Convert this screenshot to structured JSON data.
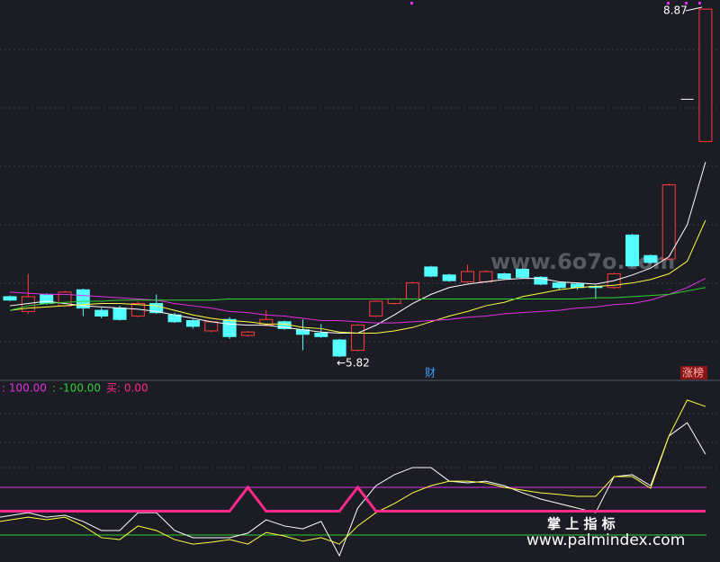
{
  "chart_data": [
    {
      "type": "candlestick",
      "up_color": "#ff3b3b",
      "down_color": "#54ffff",
      "ylim": [
        5.64,
        8.95
      ],
      "ohlc": [
        [
          6.35,
          6.36,
          6.31,
          6.32
        ],
        [
          6.22,
          6.55,
          6.2,
          6.35
        ],
        [
          6.37,
          6.38,
          6.28,
          6.29
        ],
        [
          6.27,
          6.4,
          6.26,
          6.39
        ],
        [
          6.41,
          6.42,
          6.18,
          6.25
        ],
        [
          6.23,
          6.25,
          6.16,
          6.18
        ],
        [
          6.25,
          6.27,
          6.14,
          6.15
        ],
        [
          6.18,
          6.31,
          6.17,
          6.29
        ],
        [
          6.29,
          6.37,
          6.2,
          6.21
        ],
        [
          6.19,
          6.21,
          6.12,
          6.13
        ],
        [
          6.14,
          6.15,
          6.07,
          6.09
        ],
        [
          6.05,
          6.14,
          6.04,
          6.13
        ],
        [
          6.15,
          6.17,
          5.98,
          6.0
        ],
        [
          6.01,
          6.05,
          6.0,
          6.04
        ],
        [
          6.1,
          6.23,
          6.09,
          6.15
        ],
        [
          6.13,
          6.14,
          6.06,
          6.07
        ],
        [
          6.06,
          6.15,
          5.88,
          6.02
        ],
        [
          6.03,
          6.11,
          5.99,
          6.0
        ],
        [
          5.97,
          5.98,
          5.82,
          5.83
        ],
        [
          5.88,
          6.11,
          5.87,
          6.1
        ],
        [
          6.18,
          6.32,
          6.17,
          6.31
        ],
        [
          6.29,
          6.34,
          6.28,
          6.33
        ],
        [
          6.33,
          6.48,
          6.32,
          6.47
        ],
        [
          6.61,
          6.62,
          6.52,
          6.53
        ],
        [
          6.54,
          6.55,
          6.48,
          6.49
        ],
        [
          6.48,
          6.63,
          6.47,
          6.57
        ],
        [
          6.48,
          6.58,
          6.47,
          6.57
        ],
        [
          6.55,
          6.56,
          6.5,
          6.51
        ],
        [
          6.59,
          6.6,
          6.51,
          6.52
        ],
        [
          6.52,
          6.53,
          6.45,
          6.46
        ],
        [
          6.47,
          6.48,
          6.41,
          6.43
        ],
        [
          6.46,
          6.47,
          6.41,
          6.43
        ],
        [
          6.44,
          6.45,
          6.33,
          6.43
        ],
        [
          6.43,
          6.56,
          6.42,
          6.55
        ],
        [
          6.89,
          6.9,
          6.61,
          6.62
        ],
        [
          6.71,
          6.72,
          6.64,
          6.65
        ],
        [
          6.68,
          7.34,
          6.67,
          7.33
        ],
        [
          8.08,
          8.08,
          8.08,
          8.08
        ],
        [
          7.71,
          8.87,
          7.7,
          8.87
        ]
      ],
      "series": [
        {
          "color": "#ffffff",
          "values": [
            6.27,
            6.29,
            6.31,
            6.29,
            6.27,
            6.26,
            6.25,
            6.24,
            6.22,
            6.19,
            6.16,
            6.13,
            6.11,
            6.1,
            6.1,
            6.08,
            6.06,
            6.04,
            6.03,
            6.03,
            6.1,
            6.19,
            6.29,
            6.37,
            6.43,
            6.46,
            6.48,
            6.5,
            6.51,
            6.51,
            6.48,
            6.47,
            6.46,
            6.49,
            6.54,
            6.6,
            6.7,
            6.98,
            7.53
          ]
        },
        {
          "color": "#ffff40",
          "values": [
            6.23,
            6.25,
            6.26,
            6.27,
            6.28,
            6.29,
            6.29,
            6.28,
            6.27,
            6.23,
            6.19,
            6.16,
            6.14,
            6.13,
            6.11,
            6.11,
            6.08,
            6.07,
            6.04,
            6.03,
            6.03,
            6.05,
            6.08,
            6.13,
            6.18,
            6.22,
            6.27,
            6.3,
            6.35,
            6.38,
            6.41,
            6.43,
            6.44,
            6.45,
            6.47,
            6.5,
            6.55,
            6.66,
            7.02
          ]
        },
        {
          "color": "#e030e0",
          "values": [
            6.39,
            6.38,
            6.37,
            6.37,
            6.36,
            6.35,
            6.34,
            6.33,
            6.32,
            6.29,
            6.27,
            6.25,
            6.22,
            6.21,
            6.19,
            6.18,
            6.16,
            6.14,
            6.14,
            6.13,
            6.12,
            6.12,
            6.13,
            6.14,
            6.15,
            6.17,
            6.18,
            6.2,
            6.21,
            6.22,
            6.23,
            6.25,
            6.26,
            6.28,
            6.29,
            6.32,
            6.37,
            6.43,
            6.51
          ]
        },
        {
          "color": "#30d030",
          "values": [
            6.23,
            6.27,
            6.29,
            6.3,
            6.31,
            6.31,
            6.32,
            6.32,
            6.32,
            6.32,
            6.32,
            6.32,
            6.33,
            6.33,
            6.33,
            6.33,
            6.33,
            6.33,
            6.33,
            6.33,
            6.33,
            6.33,
            6.33,
            6.33,
            6.33,
            6.33,
            6.33,
            6.33,
            6.33,
            6.33,
            6.33,
            6.33,
            6.34,
            6.34,
            6.35,
            6.36,
            6.37,
            6.4,
            6.43
          ]
        }
      ],
      "annotations": [
        "8.87",
        "←5.82"
      ],
      "tags": [
        "财",
        "涨榜"
      ]
    },
    {
      "type": "line",
      "ylim": [
        -213,
        541
      ],
      "hlines": [
        {
          "value": 100,
          "color": "#e030e0"
        },
        {
          "value": -100,
          "color": "#30d030"
        }
      ],
      "legend": [
        {
          "label": ": 100.00",
          "color": "#e030e0"
        },
        {
          "label": ": -100.00",
          "color": "#30d030"
        },
        {
          "label": "买: 0.00",
          "color": "#ff2a8a"
        }
      ],
      "series": [
        {
          "color": "#ffffff",
          "width": 1,
          "values": [
            -25,
            -6,
            -25,
            -17,
            -43,
            -81,
            -81,
            -6,
            -6,
            -81,
            -111,
            -111,
            -111,
            -92,
            -36,
            -62,
            -74,
            -43,
            -187,
            13,
            107,
            153,
            183,
            183,
            126,
            119,
            126,
            107,
            77,
            51,
            32,
            13,
            -6,
            145,
            153,
            107,
            315,
            371,
            239
          ]
        },
        {
          "color": "#ffff40",
          "width": 1,
          "values": [
            -43,
            -25,
            -36,
            -25,
            -62,
            -111,
            -119,
            -62,
            -81,
            -119,
            -138,
            -130,
            -119,
            -138,
            -89,
            -104,
            -126,
            -111,
            -138,
            -62,
            -6,
            32,
            77,
            107,
            126,
            126,
            119,
            100,
            88,
            77,
            70,
            62,
            62,
            145,
            145,
            96,
            315,
            466,
            439
          ]
        },
        {
          "color": "#ff2a8a",
          "width": 3,
          "values": [
            0,
            0,
            0,
            0,
            0,
            0,
            0,
            0,
            0,
            0,
            0,
            0,
            0,
            100,
            0,
            0,
            0,
            0,
            0,
            100,
            0,
            0,
            0,
            0,
            0,
            0,
            0,
            0,
            0,
            0,
            0,
            0,
            0,
            0,
            0,
            0,
            0,
            0,
            0
          ]
        }
      ]
    }
  ],
  "watermarks": [
    "www.6o7o.com",
    "掌 上 指 标",
    "www.palmindex.com"
  ]
}
